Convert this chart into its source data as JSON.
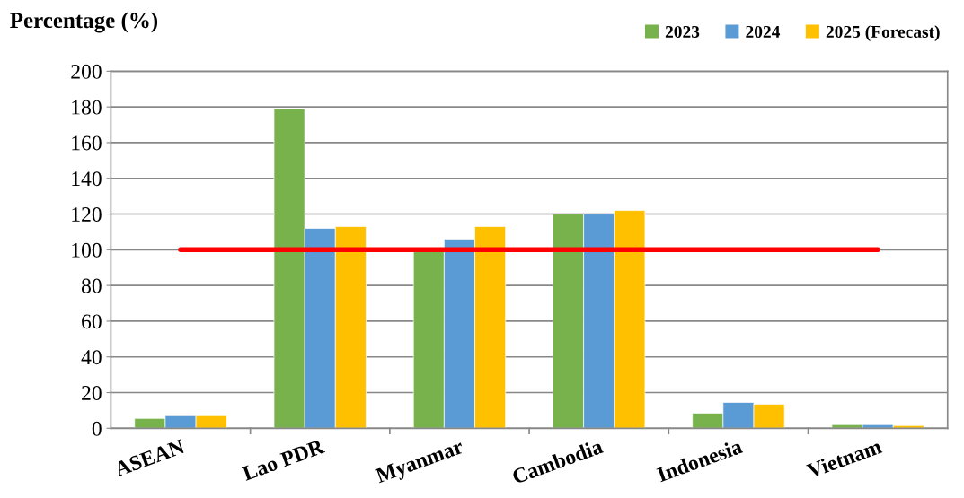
{
  "chart_data": {
    "type": "bar",
    "ylabel": "Percentage (%)",
    "categories": [
      "ASEAN",
      "Lao PDR",
      "Myanmar",
      "Cambodia",
      "Indonesia",
      "Vietnam"
    ],
    "series": [
      {
        "name": "2023",
        "color": "#77b24c",
        "values": [
          5.5,
          179,
          100,
          120,
          8.5,
          2
        ]
      },
      {
        "name": "2024",
        "color": "#5b9bd5",
        "values": [
          7,
          112,
          106,
          120,
          14.5,
          2
        ]
      },
      {
        "name": "2025 (Forecast)",
        "color": "#ffc000",
        "values": [
          7,
          113,
          113,
          122,
          13.5,
          1.5
        ]
      }
    ],
    "ylim": [
      0,
      200
    ],
    "yticks": [
      0,
      20,
      40,
      60,
      80,
      100,
      120,
      140,
      160,
      180,
      200
    ],
    "ref_lines": [
      {
        "axis": "y",
        "value": 100,
        "color": "#ff0000",
        "line_style": "solid"
      }
    ],
    "grid": "y",
    "legend": "top right"
  }
}
